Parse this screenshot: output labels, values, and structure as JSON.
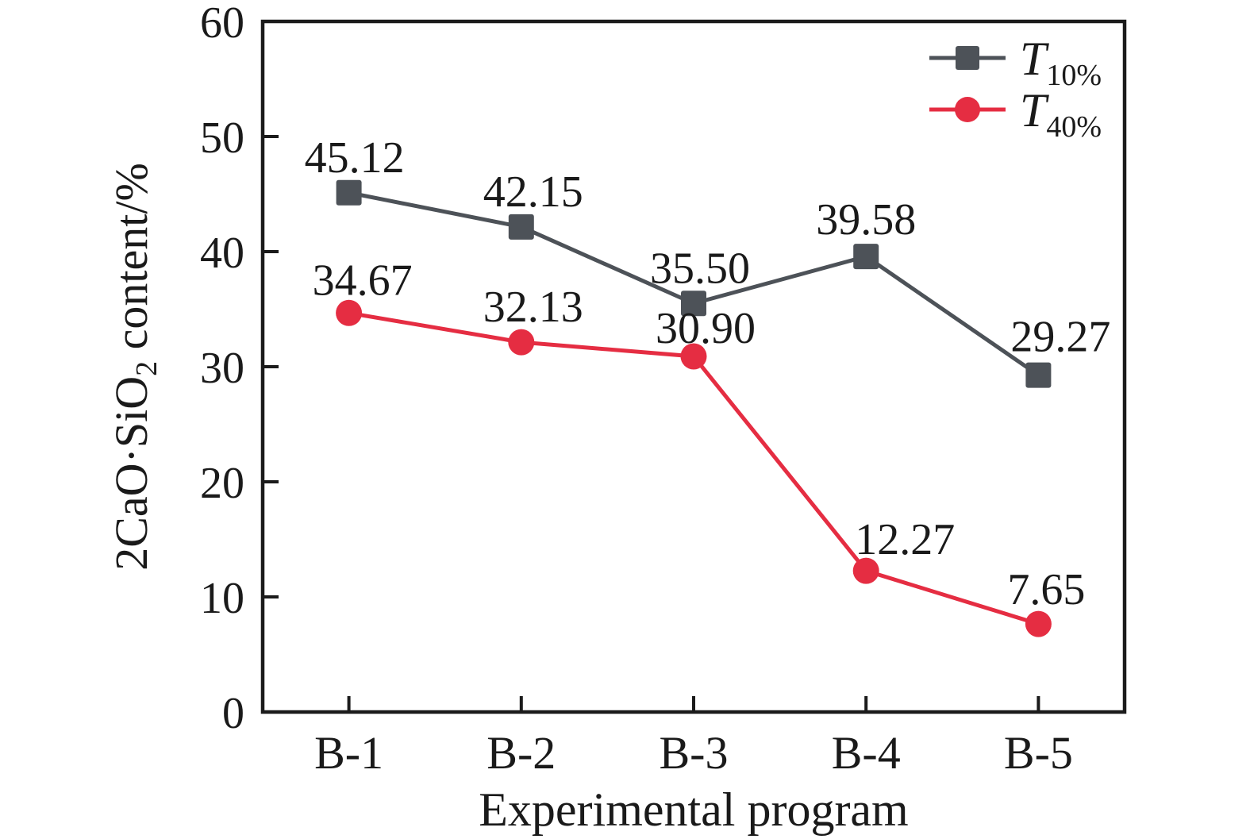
{
  "figure": {
    "background": "#ffffff",
    "axis_color": "#1b1b1b",
    "text_color": "#1a1a1a"
  },
  "chart_data": {
    "type": "line",
    "title": "",
    "xlabel": "Experimental program",
    "ylabel": "2CaO·SiO2 content/%",
    "ylabel_parts": {
      "prefix": "2CaO·SiO",
      "sub": "2",
      "suffix": " content/%"
    },
    "categories": [
      "B-1",
      "B-2",
      "B-3",
      "B-4",
      "B-5"
    ],
    "ylim": [
      0,
      60
    ],
    "yticks": [
      0,
      10,
      20,
      30,
      40,
      50,
      60
    ],
    "ytick_labels": [
      "0",
      "10",
      "20",
      "30",
      "40",
      "50",
      "60"
    ],
    "grid": false,
    "legend_position": "top-right",
    "series": [
      {
        "name": "T10%",
        "legend_main": "T",
        "legend_sub": "10%",
        "marker": "square",
        "color": "#4d5258",
        "values": [
          45.12,
          42.15,
          35.5,
          39.58,
          29.27
        ],
        "point_labels": [
          "45.12",
          "42.15",
          "35.50",
          "39.58",
          "29.27"
        ],
        "label_dx": [
          7,
          15,
          8,
          0,
          28
        ],
        "label_dy": [
          -26,
          -26,
          -26,
          -28,
          -30
        ]
      },
      {
        "name": "T40%",
        "legend_main": "T",
        "legend_sub": "40%",
        "marker": "circle",
        "color": "#e52d42",
        "values": [
          34.67,
          32.13,
          30.9,
          12.27,
          7.65
        ],
        "point_labels": [
          "34.67",
          "32.13",
          "30.90",
          "12.27",
          "7.65"
        ],
        "label_dx": [
          17,
          15,
          15,
          49,
          10
        ],
        "label_dy": [
          -23,
          -26,
          -17,
          -21,
          -25
        ]
      }
    ]
  }
}
